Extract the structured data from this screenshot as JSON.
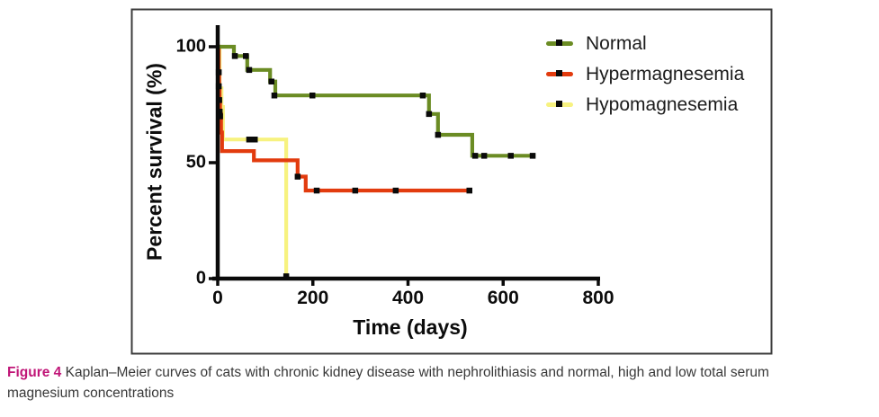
{
  "figure": {
    "caption_label": "Figure 4",
    "caption_line1": "Kaplan–Meier curves of cats with chronic kidney disease with nephrolithiasis and normal, high and low total serum",
    "caption_line2": "magnesium concentrations"
  },
  "chart_data": {
    "type": "line",
    "subtype": "kaplan-meier-step-survival",
    "title": "",
    "xlabel": "Time (days)",
    "ylabel": "Percent survival (%)",
    "xlim": [
      0,
      800
    ],
    "ylim": [
      0,
      100
    ],
    "xticks": [
      0,
      200,
      400,
      600,
      800
    ],
    "yticks": [
      0,
      50,
      100
    ],
    "grid": false,
    "legend_position": "top-right",
    "frame_color": "#3c3c3c",
    "axis_color": "#0a0a0a",
    "censor_color": "#0a0a0a",
    "series": [
      {
        "name": "Normal",
        "color": "#6b8c24",
        "steps": [
          [
            0,
            100
          ],
          [
            34,
            100
          ],
          [
            34,
            96
          ],
          [
            62,
            96
          ],
          [
            62,
            90
          ],
          [
            110,
            90
          ],
          [
            110,
            85
          ],
          [
            121,
            85
          ],
          [
            121,
            79
          ],
          [
            444,
            79
          ],
          [
            444,
            71
          ],
          [
            463,
            71
          ],
          [
            463,
            62
          ],
          [
            535,
            62
          ],
          [
            535,
            53
          ],
          [
            668,
            53
          ]
        ],
        "censors": [
          [
            36,
            96
          ],
          [
            59,
            96
          ],
          [
            66,
            90
          ],
          [
            113,
            85
          ],
          [
            119,
            79
          ],
          [
            199,
            79
          ],
          [
            431,
            79
          ],
          [
            444,
            71
          ],
          [
            463,
            62
          ],
          [
            541,
            53
          ],
          [
            560,
            53
          ],
          [
            616,
            53
          ],
          [
            662,
            53
          ]
        ]
      },
      {
        "name": "Hypermagnesemia",
        "color": "#e23b0e",
        "steps": [
          [
            0,
            100
          ],
          [
            2,
            100
          ],
          [
            2,
            89
          ],
          [
            3,
            89
          ],
          [
            3,
            83
          ],
          [
            4,
            83
          ],
          [
            4,
            77
          ],
          [
            5,
            77
          ],
          [
            5,
            71
          ],
          [
            7,
            71
          ],
          [
            7,
            63
          ],
          [
            9,
            63
          ],
          [
            9,
            55
          ],
          [
            76,
            55
          ],
          [
            76,
            51
          ],
          [
            168,
            51
          ],
          [
            168,
            44
          ],
          [
            185,
            44
          ],
          [
            185,
            38
          ],
          [
            531,
            38
          ]
        ],
        "censors": [
          [
            2,
            89
          ],
          [
            2,
            83
          ],
          [
            3,
            77
          ],
          [
            4,
            72
          ],
          [
            5,
            70
          ],
          [
            168,
            44
          ],
          [
            208,
            38
          ],
          [
            289,
            38
          ],
          [
            374,
            38
          ],
          [
            529,
            38
          ]
        ]
      },
      {
        "name": "Hypomagnesemia",
        "color": "#f7f280",
        "steps": [
          [
            0,
            100
          ],
          [
            4,
            100
          ],
          [
            4,
            82
          ],
          [
            8,
            82
          ],
          [
            8,
            74
          ],
          [
            11,
            74
          ],
          [
            11,
            60
          ],
          [
            144,
            60
          ],
          [
            144,
            0
          ]
        ],
        "censors": [
          [
            66,
            60
          ],
          [
            78,
            60
          ],
          [
            144,
            1
          ]
        ]
      }
    ]
  }
}
